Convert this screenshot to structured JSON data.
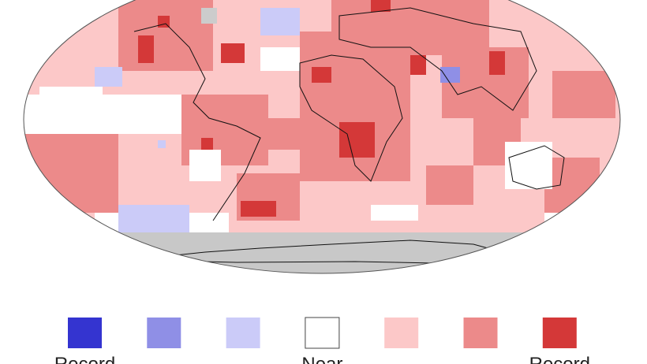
{
  "legend": [
    {
      "color": "#3434d0",
      "label": "Record"
    },
    {
      "color": "#8f8fe6"
    },
    {
      "color": "#cbcbf8"
    },
    {
      "color": "#ffffff",
      "label": "Near"
    },
    {
      "color": "#fcc8c8"
    },
    {
      "color": "#ec8a8a"
    },
    {
      "color": "#d43838",
      "label": "Record"
    }
  ]
}
